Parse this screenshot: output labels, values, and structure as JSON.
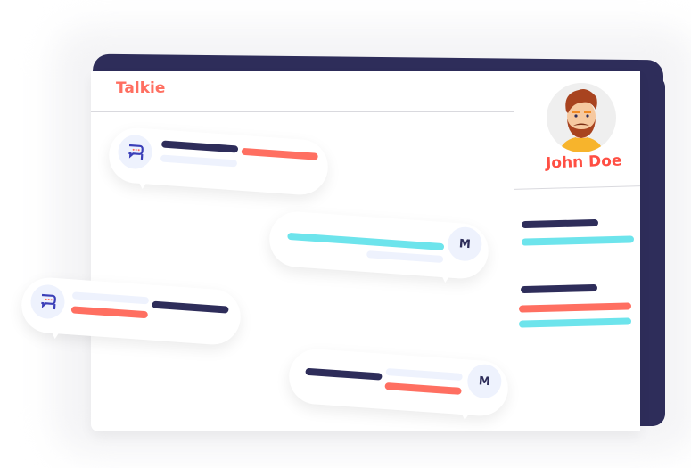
{
  "app": {
    "title": "Talkie"
  },
  "profile": {
    "name": "John Doe",
    "avatar": "bearded-man-avatar"
  },
  "messages": [
    {
      "side": "left",
      "icon": "chat-bubble-icon"
    },
    {
      "side": "right",
      "avatar_initial": "M"
    },
    {
      "side": "left",
      "icon": "chat-bubble-icon"
    },
    {
      "side": "right",
      "avatar_initial": "M"
    }
  ],
  "colors": {
    "navy": "#2e2d5a",
    "coral": "#ff6f61",
    "cyan": "#6de4ec",
    "light": "#eef2fd"
  }
}
